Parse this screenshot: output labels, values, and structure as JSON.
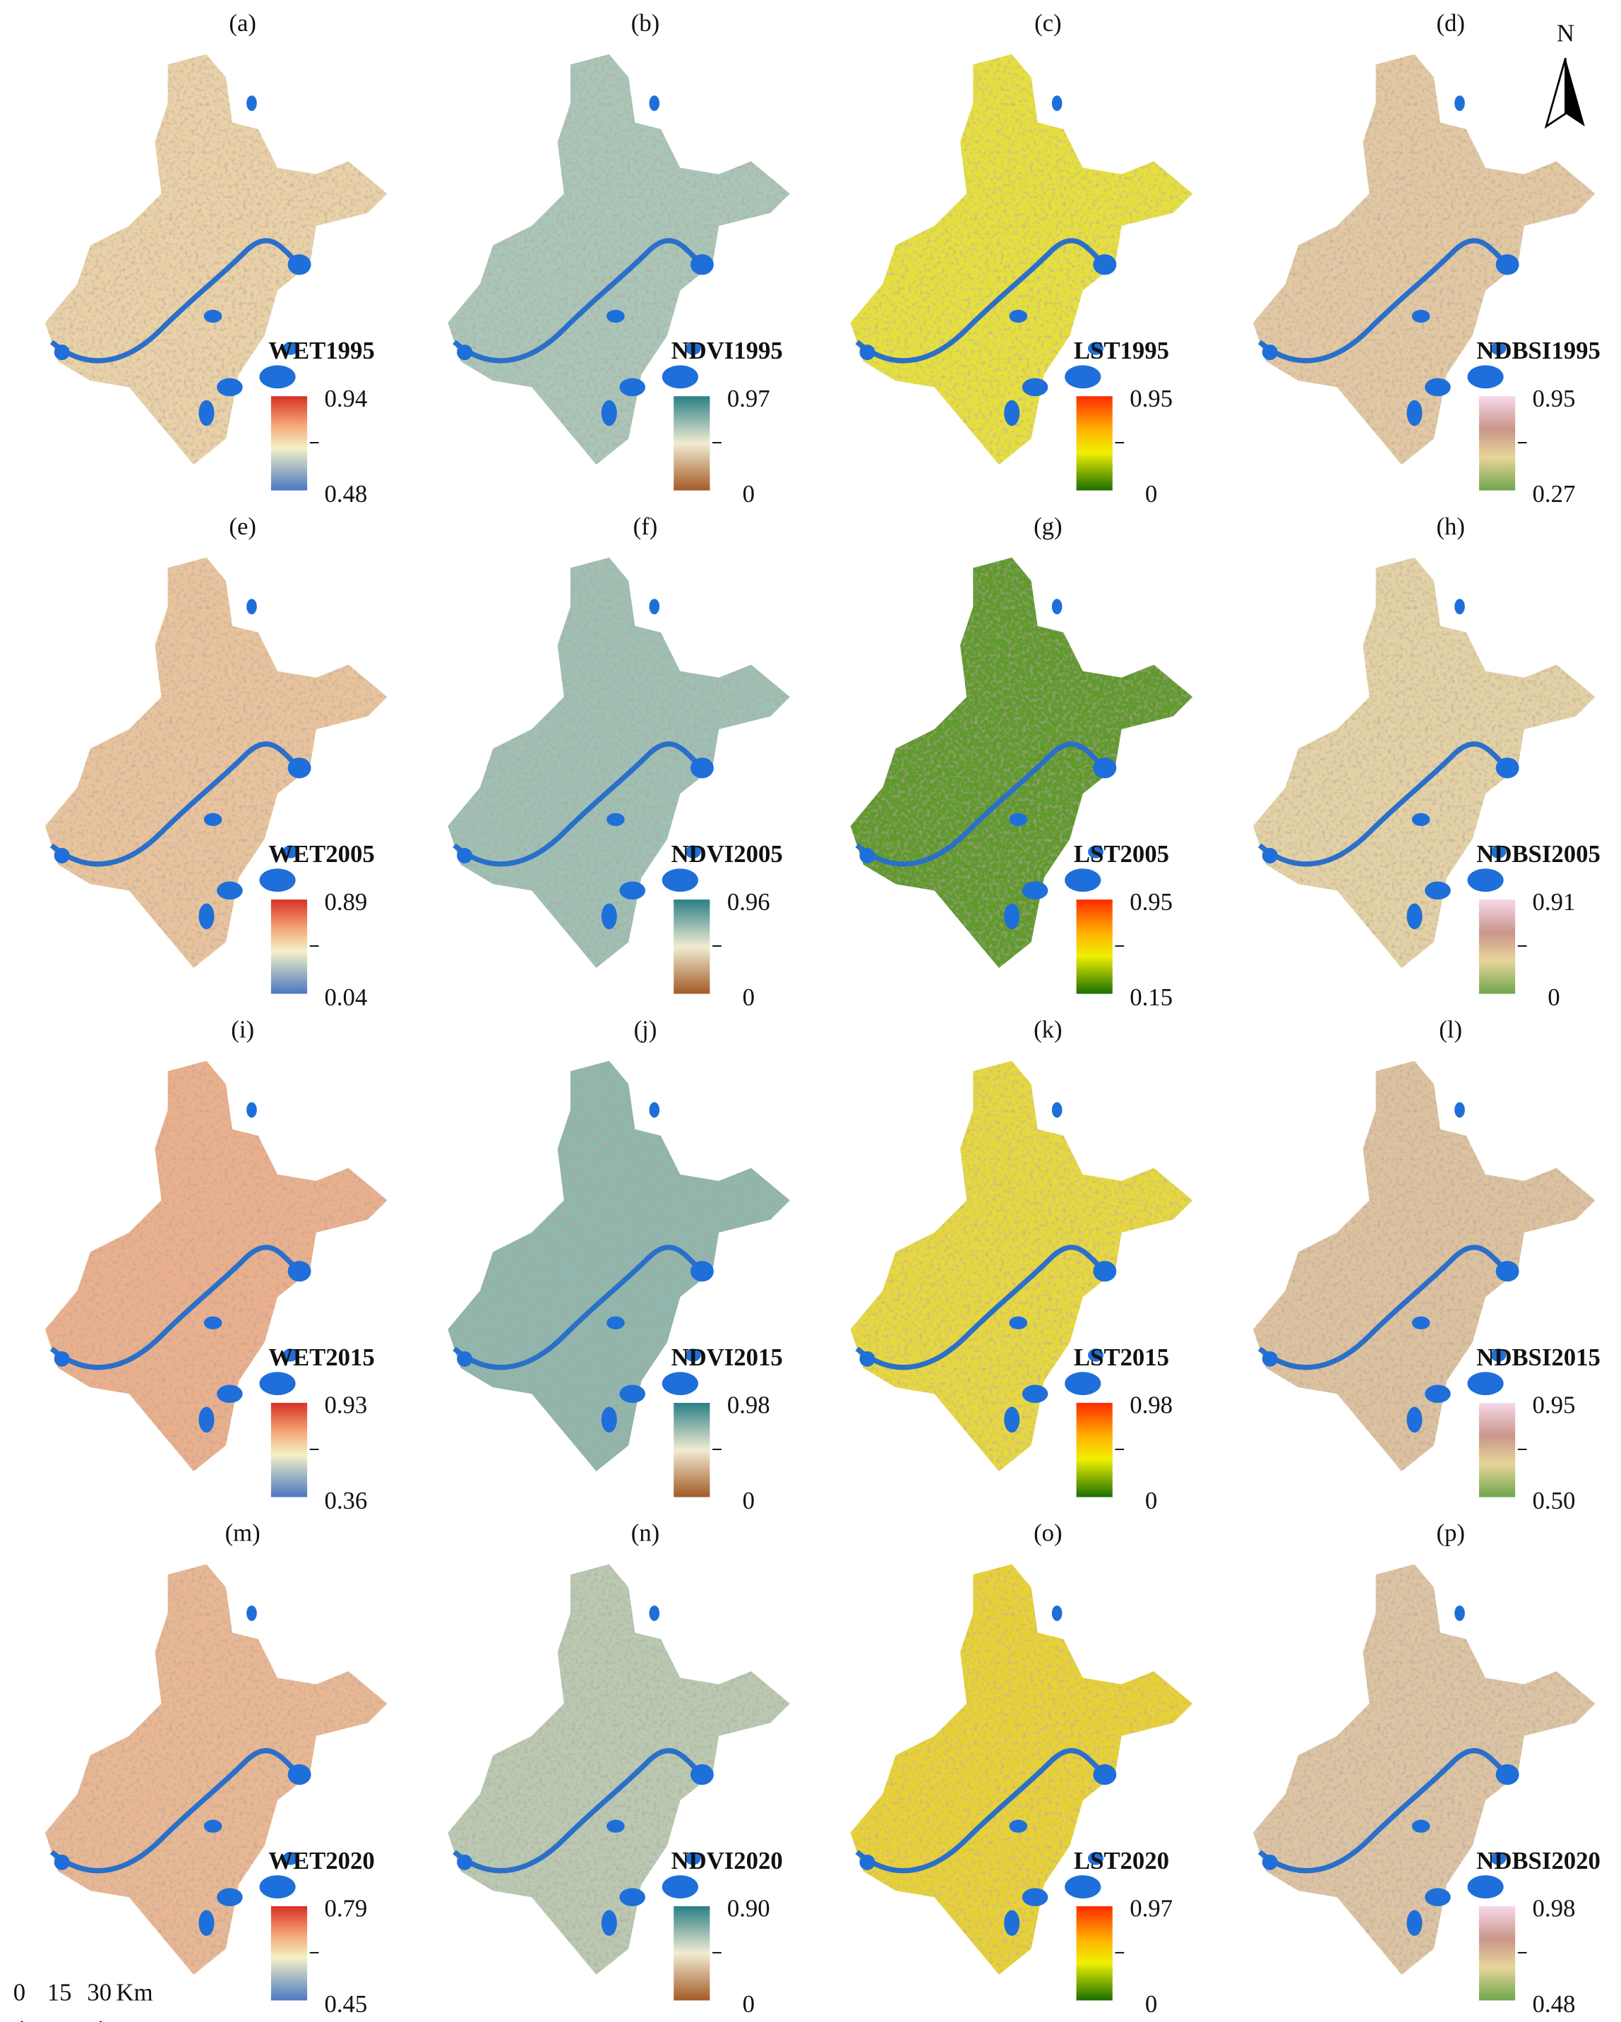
{
  "north": "N",
  "scale_bar": {
    "labels": [
      "0",
      "15",
      "30"
    ],
    "unit": "Km"
  },
  "panels": [
    {
      "label": "(a)",
      "title": "WET1995",
      "max": "0.94",
      "min": "0.48"
    },
    {
      "label": "(b)",
      "title": "NDVI1995",
      "max": "0.97",
      "min": "0"
    },
    {
      "label": "(c)",
      "title": "LST1995",
      "max": "0.95",
      "min": "0"
    },
    {
      "label": "(d)",
      "title": "NDBSI1995",
      "max": "0.95",
      "min": "0.27"
    },
    {
      "label": "(e)",
      "title": "WET2005",
      "max": "0.89",
      "min": "0.04"
    },
    {
      "label": "(f)",
      "title": "NDVI2005",
      "max": "0.96",
      "min": "0"
    },
    {
      "label": "(g)",
      "title": "LST2005",
      "max": "0.95",
      "min": "0.15"
    },
    {
      "label": "(h)",
      "title": "NDBSI2005",
      "max": "0.91",
      "min": "0"
    },
    {
      "label": "(i)",
      "title": "WET2015",
      "max": "0.93",
      "min": "0.36"
    },
    {
      "label": "(j)",
      "title": "NDVI2015",
      "max": "0.98",
      "min": "0"
    },
    {
      "label": "(k)",
      "title": "LST2015",
      "max": "0.98",
      "min": "0"
    },
    {
      "label": "(l)",
      "title": "NDBSI2015",
      "max": "0.95",
      "min": "0.50"
    },
    {
      "label": "(m)",
      "title": "WET2020",
      "max": "0.79",
      "min": "0.45"
    },
    {
      "label": "(n)",
      "title": "NDVI2020",
      "max": "0.90",
      "min": "0"
    },
    {
      "label": "(o)",
      "title": "LST2020",
      "max": "0.97",
      "min": "0"
    },
    {
      "label": "(p)",
      "title": "NDBSI2020",
      "max": "0.98",
      "min": "0.48"
    }
  ]
}
